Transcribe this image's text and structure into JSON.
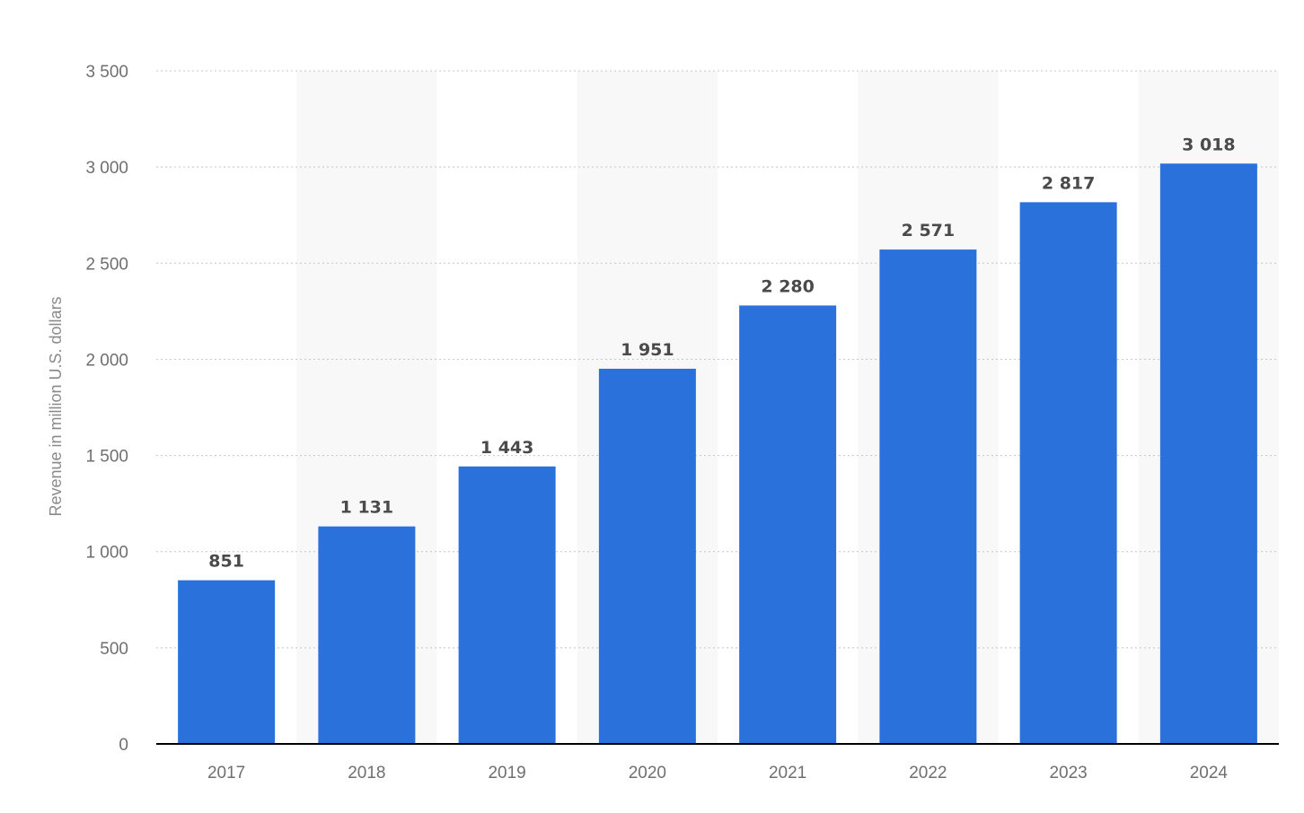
{
  "chart_data": {
    "type": "bar",
    "title": "",
    "xlabel": "",
    "ylabel": "Revenue in million U.S. dollars",
    "categories": [
      "2017",
      "2018",
      "2019",
      "2020",
      "2021",
      "2022",
      "2023",
      "2024"
    ],
    "values": [
      851,
      1131,
      1443,
      1951,
      2280,
      2571,
      2817,
      3018
    ],
    "value_labels": [
      "851",
      "1 131",
      "1 443",
      "1 951",
      "2 280",
      "2 571",
      "2 817",
      "3 018"
    ],
    "ylim": [
      0,
      3500
    ],
    "yticks": [
      0,
      500,
      1000,
      1500,
      2000,
      2500,
      3000,
      3500
    ],
    "ytick_labels": [
      "0",
      "500",
      "1 000",
      "1 500",
      "2 000",
      "2 500",
      "3 000",
      "3 500"
    ],
    "grid": true,
    "legend": "none",
    "colors": {
      "bar": "#2a71dc",
      "band": "#f8f8f8",
      "grid": "#c4c4c4"
    }
  }
}
